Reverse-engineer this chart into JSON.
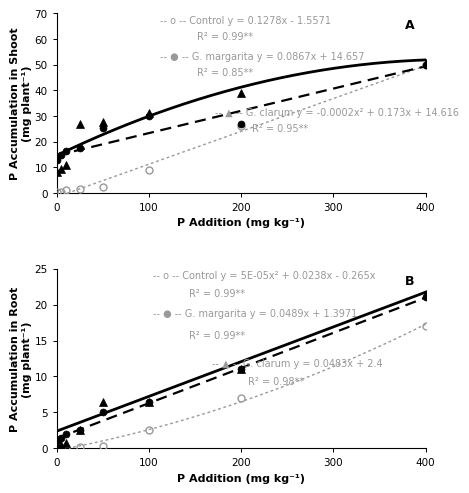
{
  "panel_A": {
    "title": "A",
    "ylabel": "P Accumulation in Shoot\n(mg plant⁻¹)",
    "xlabel": "P Addition (mg kg⁻¹)",
    "xlim": [
      0,
      400
    ],
    "ylim": [
      0,
      70
    ],
    "yticks": [
      0,
      10,
      20,
      30,
      40,
      50,
      60,
      70
    ],
    "xticks": [
      0,
      100,
      200,
      300,
      400
    ],
    "ctrl_x": [
      0,
      5,
      10,
      25,
      50,
      100,
      200,
      400
    ],
    "ctrl_y": [
      0.3,
      0.5,
      1.0,
      1.5,
      2.5,
      9.0,
      26.0,
      50.0
    ],
    "marg_x": [
      0,
      5,
      10,
      25,
      50,
      100,
      200,
      400
    ],
    "marg_y": [
      13.0,
      15.0,
      16.5,
      17.5,
      25.5,
      30.0,
      27.0,
      50.0
    ],
    "clar_x": [
      0,
      5,
      10,
      25,
      50,
      100,
      200,
      400
    ],
    "clar_y": [
      8.0,
      9.5,
      11.0,
      27.0,
      27.5,
      31.0,
      39.0,
      50.5
    ],
    "eq_ctrl_line1": "-- o -- Control y = 0.1278x - 1.5571",
    "eq_ctrl_line2": "R² = 0.99**",
    "eq_marg_line1": "-- ● -- G. margarita y = 0.0867x + 14.657",
    "eq_marg_line2": "R² = 0.85**",
    "eq_clar_line1": "-- ▲ -- G. clarum y = -0.0002x² + 0.173x + 14.616",
    "eq_clar_line2": "R² = 0.95**",
    "ctrl_eq_a": 0.0,
    "ctrl_eq_b": 0.1278,
    "ctrl_eq_c": -1.5571,
    "marg_eq_b": 0.0867,
    "marg_eq_c": 14.657,
    "clar_eq_a": -0.0002,
    "clar_eq_b": 0.173,
    "clar_eq_c": 14.616
  },
  "panel_B": {
    "title": "B",
    "ylabel": "P Accumulation in Root\n(mg plant⁻¹)",
    "xlabel": "P Addition (mg kg⁻¹)",
    "xlim": [
      0,
      400
    ],
    "ylim": [
      0,
      25
    ],
    "yticks": [
      0,
      5,
      10,
      15,
      20,
      25
    ],
    "xticks": [
      0,
      100,
      200,
      300,
      400
    ],
    "ctrl_x": [
      0,
      5,
      10,
      25,
      50,
      100,
      200,
      400
    ],
    "ctrl_y": [
      0.0,
      0.05,
      0.1,
      0.2,
      0.3,
      2.5,
      7.0,
      17.0
    ],
    "marg_x": [
      0,
      5,
      10,
      25,
      50,
      100,
      200,
      400
    ],
    "marg_y": [
      1.0,
      1.5,
      2.0,
      2.5,
      5.0,
      6.5,
      11.0,
      21.0
    ],
    "clar_x": [
      0,
      5,
      10,
      25,
      50,
      100,
      200,
      400
    ],
    "clar_y": [
      0.3,
      0.5,
      0.8,
      2.5,
      6.5,
      6.5,
      11.0,
      21.5
    ],
    "eq_ctrl_line1": "-- o -- Control y = 5E-05x² + 0.0238x - 0.265x",
    "eq_ctrl_line2": "R² = 0.99**",
    "eq_marg_line1": "-- ● -- G. margarita y = 0.0489x + 1.3971",
    "eq_marg_line2": "R² = 0.99**",
    "eq_clar_line1": "-- ▲ -- G. clarum y = 0.0483x + 2.4",
    "eq_clar_line2": "R² = 0.98**",
    "ctrl_eq_a": 5e-05,
    "ctrl_eq_b": 0.0238,
    "ctrl_eq_c": -0.265,
    "marg_eq_b": 0.0489,
    "marg_eq_c": 1.3971,
    "clar_eq_a": 0.0,
    "clar_eq_b": 0.0483,
    "clar_eq_c": 2.4
  },
  "gray_color": "#999999",
  "font_size_eq": 7.0,
  "font_size_label": 8.0,
  "font_size_tick": 7.5,
  "font_size_title": 9
}
